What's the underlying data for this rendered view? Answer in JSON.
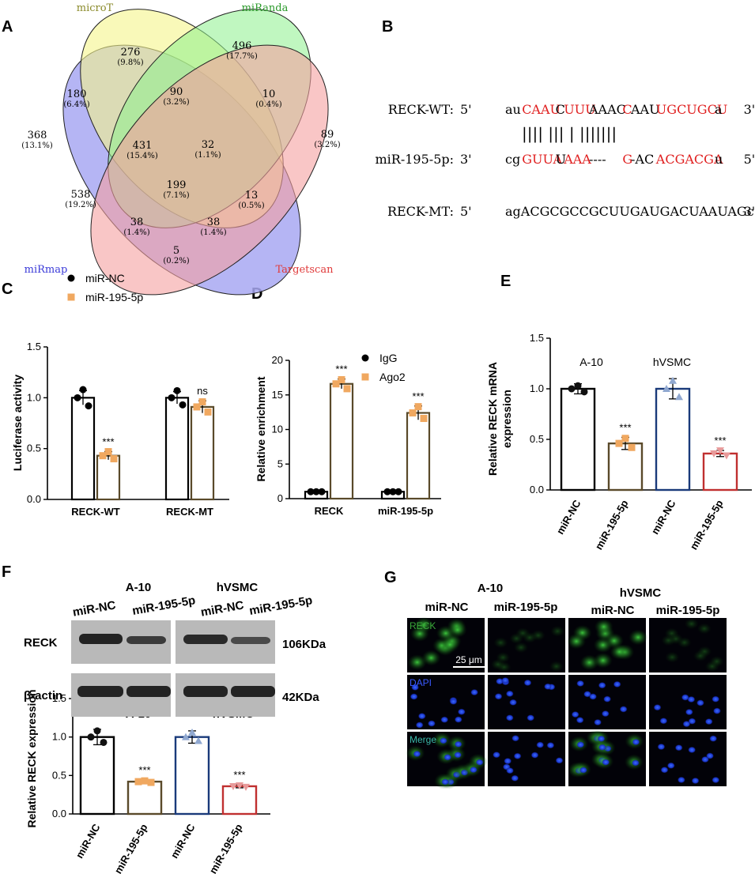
{
  "panel_letters": {
    "A": "A",
    "B": "B",
    "C": "C",
    "D": "D",
    "E": "E",
    "F": "F",
    "G": "G"
  },
  "venn": {
    "sets": [
      {
        "name": "microT",
        "color": "#f5f58a",
        "label_color": "#8a8a2a"
      },
      {
        "name": "miRanda",
        "color": "#8cf08c",
        "label_color": "#2a9a2a"
      },
      {
        "name": "miRmap",
        "color": "#a8a8f2",
        "label_color": "#3a3ad8"
      },
      {
        "name": "Targetscan",
        "color": "#f5a0a0",
        "label_color": "#e03a3a"
      }
    ],
    "regions": [
      {
        "count": "276",
        "pct": "(9.8%)"
      },
      {
        "count": "496",
        "pct": "(17.7%)"
      },
      {
        "count": "180",
        "pct": "(6.4%)"
      },
      {
        "count": "90",
        "pct": "(3.2%)"
      },
      {
        "count": "10",
        "pct": "(0.4%)"
      },
      {
        "count": "368",
        "pct": "(13.1%)"
      },
      {
        "count": "431",
        "pct": "(15.4%)"
      },
      {
        "count": "32",
        "pct": "(1.1%)"
      },
      {
        "count": "89",
        "pct": "(3.2%)"
      },
      {
        "count": "199",
        "pct": "(7.1%)"
      },
      {
        "count": "538",
        "pct": "(19.2%)"
      },
      {
        "count": "13",
        "pct": "(0.5%)"
      },
      {
        "count": "38",
        "pct": "(1.4%)"
      },
      {
        "count": "38",
        "pct": "(1.4%)"
      },
      {
        "count": "5",
        "pct": "(0.2%)"
      }
    ]
  },
  "alignment": {
    "rows": [
      {
        "label": "RECK-WT:",
        "p5": "5'",
        "p3": "3'",
        "segments": [
          {
            "t": "au",
            "c": "#000"
          },
          {
            "t": "CAAU",
            "c": "#e02020"
          },
          {
            "t": "C",
            "c": "#000"
          },
          {
            "t": "UUU",
            "c": "#e02020"
          },
          {
            "t": "AAAC",
            "c": "#000"
          },
          {
            "t": "C",
            "c": "#e02020"
          },
          {
            "t": "AAU",
            "c": "#000"
          },
          {
            "t": "UGCUGCU",
            "c": "#e02020"
          },
          {
            "t": "a",
            "c": "#000"
          }
        ]
      },
      {
        "label": "miR-195-5p:",
        "p5": "3'",
        "p3": "5'",
        "segments": [
          {
            "t": "cg",
            "c": "#000"
          },
          {
            "t": "GUUA",
            "c": "#e02020"
          },
          {
            "t": "U",
            "c": "#000"
          },
          {
            "t": "AAA",
            "c": "#e02020"
          },
          {
            "t": "----",
            "c": "#000"
          },
          {
            "t": "G",
            "c": "#e02020"
          },
          {
            "t": "-AC",
            "c": "#000"
          },
          {
            "t": "ACGACGA",
            "c": "#e02020"
          },
          {
            "t": "u",
            "c": "#000"
          }
        ]
      },
      {
        "label": "RECK-MT:",
        "p5": "5'",
        "p3": "3'",
        "segments": [
          {
            "t": "agACGCGCCGCUUGAUGACUAAUAGc",
            "c": "#000"
          }
        ]
      }
    ],
    "pairs": "|||| |||     |    |||||||"
  },
  "chart_data": [
    {
      "id": "C",
      "type": "bar",
      "ylabel": "Luciferase activity",
      "ylim": [
        0,
        1.5
      ],
      "yticks": [
        "0.0",
        "0.5",
        "1.0",
        "1.5"
      ],
      "categories": [
        "RECK-WT",
        "RECK-MT"
      ],
      "series": [
        {
          "name": "miR-NC",
          "color": "#000000",
          "marker": "circle",
          "values": [
            1.0,
            1.0
          ],
          "err": [
            0.07,
            0.06
          ],
          "points": [
            [
              1.0,
              1.08,
              0.92
            ],
            [
              1.0,
              1.07,
              0.93
            ]
          ]
        },
        {
          "name": "miR-195-5p",
          "color": "#f0a860",
          "marker": "square",
          "values": [
            0.43,
            0.91
          ],
          "err": [
            0.04,
            0.06
          ],
          "points": [
            [
              0.43,
              0.47,
              0.4
            ],
            [
              0.91,
              0.96,
              0.86
            ]
          ]
        }
      ],
      "annotations": [
        "***",
        "ns"
      ]
    },
    {
      "id": "D",
      "type": "bar",
      "ylabel": "Relative enrichment",
      "ylim": [
        0,
        20
      ],
      "yticks": [
        "0",
        "5",
        "10",
        "15",
        "20"
      ],
      "categories": [
        "RECK",
        "miR-195-5p"
      ],
      "series": [
        {
          "name": "IgG",
          "color": "#000000",
          "marker": "circle",
          "values": [
            1.0,
            1.0
          ],
          "err": [
            0,
            0
          ],
          "points": [
            [
              1.0,
              1.0,
              1.0
            ],
            [
              1.0,
              1.0,
              1.0
            ]
          ]
        },
        {
          "name": "Ago2",
          "color": "#f0a860",
          "marker": "square",
          "values": [
            16.6,
            12.4
          ],
          "err": [
            0.7,
            1.0
          ],
          "points": [
            [
              16.6,
              17.2,
              15.9
            ],
            [
              12.4,
              13.3,
              11.6
            ]
          ]
        }
      ],
      "annotations": [
        "***",
        "***"
      ]
    },
    {
      "id": "E",
      "type": "bar",
      "ylabel": "Relative RECK mRNA expression",
      "ylim": [
        0,
        1.5
      ],
      "yticks": [
        "0.0",
        "0.5",
        "1.0",
        "1.5"
      ],
      "categories": [
        "miR-NC",
        "miR-195-5p",
        "miR-NC",
        "miR-195-5p"
      ],
      "groups": [
        "A-10",
        "hVSMC"
      ],
      "values": [
        1.0,
        0.46,
        1.0,
        0.36
      ],
      "err": [
        0.05,
        0.06,
        0.1,
        0.03
      ],
      "colors": [
        "#000000",
        "#5a4a2a",
        "#1a3a7a",
        "#c03030"
      ],
      "point_colors": [
        "#111111",
        "#f0a860",
        "#90a8d0",
        "#e89a9a"
      ],
      "points": [
        [
          1.0,
          1.03,
          0.97
        ],
        [
          0.46,
          0.51,
          0.42
        ],
        [
          1.0,
          1.08,
          0.92
        ],
        [
          0.36,
          0.39,
          0.34
        ]
      ],
      "annotations": [
        "",
        "***",
        "",
        "***"
      ]
    },
    {
      "id": "F",
      "type": "bar",
      "ylabel": "Relative RECK expression",
      "ylim": [
        0,
        1.5
      ],
      "yticks": [
        "0.0",
        "0.5",
        "1.0",
        "1.5"
      ],
      "categories": [
        "miR-NC",
        "miR-195-5p",
        "miR-NC",
        "miR-195-5p"
      ],
      "groups": [
        "A-10",
        "hVSMC"
      ],
      "values": [
        1.0,
        0.42,
        1.0,
        0.36
      ],
      "err": [
        0.1,
        0.02,
        0.08,
        0.02
      ],
      "colors": [
        "#000000",
        "#5a4a2a",
        "#1a3a7a",
        "#c03030"
      ],
      "point_colors": [
        "#111111",
        "#f0a860",
        "#90a8d0",
        "#e89a9a"
      ],
      "points": [
        [
          1.0,
          1.08,
          0.93
        ],
        [
          0.42,
          0.43,
          0.41
        ],
        [
          1.0,
          1.06,
          0.95
        ],
        [
          0.36,
          0.37,
          0.35
        ]
      ],
      "annotations": [
        "",
        "***",
        "",
        "***"
      ]
    }
  ],
  "blot": {
    "groups": [
      "A-10",
      "hVSMC"
    ],
    "lanes": [
      "miR-NC",
      "miR-195-5p",
      "miR-NC",
      "miR-195-5p"
    ],
    "rows": [
      {
        "label": "RECK",
        "size": "106KDa"
      },
      {
        "label": "β-actin",
        "size": "42KDa"
      }
    ]
  },
  "fluor": {
    "groups": [
      "A-10",
      "hVSMC"
    ],
    "columns": [
      "miR-NC",
      "miR-195-5p",
      "miR-NC",
      "miR-195-5p"
    ],
    "rows": [
      "RECK",
      "DAPI",
      "Merge"
    ],
    "scale_bar": "25 μm"
  }
}
